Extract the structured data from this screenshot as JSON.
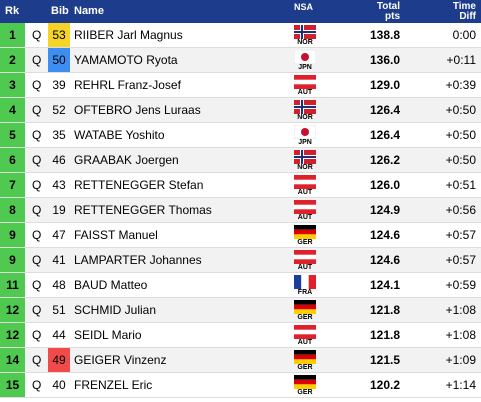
{
  "header": {
    "rk": "Rk",
    "bib": "Bib",
    "name": "Name",
    "nsa": "NSA",
    "total": [
      "Total",
      "pts"
    ],
    "diff": [
      "Time",
      "Diff"
    ]
  },
  "table": {
    "rows": [
      {
        "rk": "1",
        "q": "Q",
        "bib": "53",
        "bib_color": "#f5d327",
        "name": "RIIBER Jarl Magnus",
        "nsa": "NOR",
        "points": "138.8",
        "diff": "0:00"
      },
      {
        "rk": "2",
        "q": "Q",
        "bib": "50",
        "bib_color": "#3d8ef0",
        "name": "YAMAMOTO Ryota",
        "nsa": "JPN",
        "points": "136.0",
        "diff": "+0:11"
      },
      {
        "rk": "3",
        "q": "Q",
        "bib": "39",
        "name": "REHRL Franz-Josef",
        "nsa": "AUT",
        "points": "129.0",
        "diff": "+0:39"
      },
      {
        "rk": "4",
        "q": "Q",
        "bib": "52",
        "name": "OFTEBRO Jens Luraas",
        "nsa": "NOR",
        "points": "126.4",
        "diff": "+0:50"
      },
      {
        "rk": "5",
        "q": "Q",
        "bib": "35",
        "name": "WATABE Yoshito",
        "nsa": "JPN",
        "points": "126.4",
        "diff": "+0:50"
      },
      {
        "rk": "6",
        "q": "Q",
        "bib": "46",
        "name": "GRAABAK Joergen",
        "nsa": "NOR",
        "points": "126.2",
        "diff": "+0:50"
      },
      {
        "rk": "7",
        "q": "Q",
        "bib": "43",
        "name": "RETTENEGGER Stefan",
        "nsa": "AUT",
        "points": "126.0",
        "diff": "+0:51"
      },
      {
        "rk": "8",
        "q": "Q",
        "bib": "19",
        "name": "RETTENEGGER Thomas",
        "nsa": "AUT",
        "points": "124.9",
        "diff": "+0:56"
      },
      {
        "rk": "9",
        "q": "Q",
        "bib": "47",
        "name": "FAISST Manuel",
        "nsa": "GER",
        "points": "124.6",
        "diff": "+0:57"
      },
      {
        "rk": "9",
        "q": "Q",
        "bib": "41",
        "name": "LAMPARTER Johannes",
        "nsa": "AUT",
        "points": "124.6",
        "diff": "+0:57"
      },
      {
        "rk": "11",
        "q": "Q",
        "bib": "48",
        "name": "BAUD Matteo",
        "nsa": "FRA",
        "points": "124.1",
        "diff": "+0:59"
      },
      {
        "rk": "12",
        "q": "Q",
        "bib": "51",
        "name": "SCHMID Julian",
        "nsa": "GER",
        "points": "121.8",
        "diff": "+1:08"
      },
      {
        "rk": "12",
        "q": "Q",
        "bib": "44",
        "name": "SEIDL Mario",
        "nsa": "AUT",
        "points": "121.8",
        "diff": "+1:08"
      },
      {
        "rk": "14",
        "q": "Q",
        "bib": "49",
        "bib_color": "#f04a4a",
        "name": "GEIGER Vinzenz",
        "nsa": "GER",
        "points": "121.5",
        "diff": "+1:09"
      },
      {
        "rk": "15",
        "q": "Q",
        "bib": "40",
        "name": "FRENZEL Eric",
        "nsa": "GER",
        "points": "120.2",
        "diff": "+1:14"
      }
    ]
  }
}
